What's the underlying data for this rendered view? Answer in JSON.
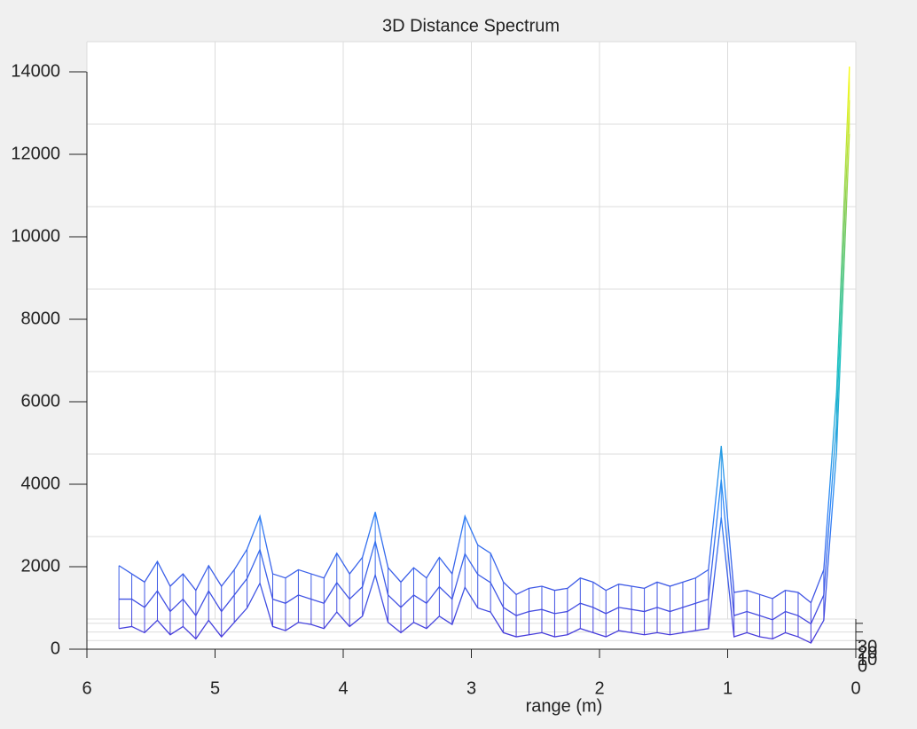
{
  "chart_data": {
    "type": "mesh",
    "title": "3D Distance Spectrum",
    "xlabel": "range (m)",
    "x": [
      0.05,
      0.15,
      0.25,
      0.35,
      0.45,
      0.55,
      0.65,
      0.75,
      0.85,
      0.95,
      1.05,
      1.15,
      1.25,
      1.35,
      1.45,
      1.55,
      1.65,
      1.75,
      1.85,
      1.95,
      2.05,
      2.15,
      2.25,
      2.35,
      2.45,
      2.55,
      2.65,
      2.75,
      2.85,
      2.95,
      3.05,
      3.15,
      3.25,
      3.35,
      3.45,
      3.55,
      3.65,
      3.75,
      3.85,
      3.95,
      4.05,
      4.15,
      4.25,
      4.35,
      4.45,
      4.55,
      4.65,
      4.75,
      4.85,
      4.95,
      5.05,
      5.15,
      5.25,
      5.35,
      5.45,
      5.55,
      5.65,
      5.75
    ],
    "z": [
      0,
      15,
      30
    ],
    "values": [
      [
        12500,
        4800,
        700,
        150,
        300,
        400,
        250,
        300,
        400,
        300,
        3200,
        500,
        450,
        400,
        350,
        400,
        350,
        400,
        450,
        300,
        400,
        500,
        350,
        300,
        400,
        350,
        300,
        400,
        900,
        1000,
        1500,
        600,
        800,
        500,
        650,
        400,
        650,
        1800,
        800,
        550,
        900,
        500,
        600,
        650,
        450,
        550,
        1600,
        1000,
        650,
        300,
        700,
        250,
        550,
        350,
        700,
        400,
        550,
        500
      ],
      [
        13000,
        5200,
        1000,
        300,
        500,
        600,
        400,
        500,
        600,
        500,
        3800,
        900,
        800,
        700,
        600,
        700,
        600,
        650,
        700,
        550,
        700,
        800,
        600,
        550,
        650,
        600,
        500,
        700,
        1300,
        1500,
        2000,
        900,
        1200,
        800,
        1000,
        700,
        1000,
        2300,
        1200,
        900,
        1300,
        800,
        900,
        1000,
        800,
        900,
        2100,
        1400,
        1000,
        600,
        1100,
        500,
        900,
        600,
        1100,
        700,
        900,
        900
      ],
      [
        13500,
        5600,
        1300,
        500,
        750,
        800,
        600,
        700,
        800,
        750,
        4300,
        1300,
        1100,
        1000,
        900,
        1000,
        850,
        900,
        950,
        800,
        1000,
        1100,
        850,
        800,
        900,
        850,
        700,
        1000,
        1700,
        1900,
        2600,
        1200,
        1600,
        1100,
        1350,
        1000,
        1350,
        2700,
        1600,
        1200,
        1700,
        1100,
        1200,
        1300,
        1100,
        1200,
        2600,
        1800,
        1300,
        900,
        1400,
        800,
        1200,
        900,
        1500,
        1000,
        1200,
        1400
      ]
    ],
    "xlim": [
      0,
      6
    ],
    "xdir": "reverse",
    "xticks": [
      0,
      1,
      2,
      3,
      4,
      5,
      6
    ],
    "ylim": [
      0,
      14000
    ],
    "yticks": [
      0,
      2000,
      4000,
      6000,
      8000,
      10000,
      12000,
      14000
    ],
    "zlim": [
      0,
      35
    ],
    "zticks": [
      0,
      10,
      20,
      30
    ],
    "grid": true,
    "colormap": [
      "#4a35d8",
      "#2e87f7",
      "#19c1c1",
      "#81cc59",
      "#f9fb15"
    ]
  }
}
